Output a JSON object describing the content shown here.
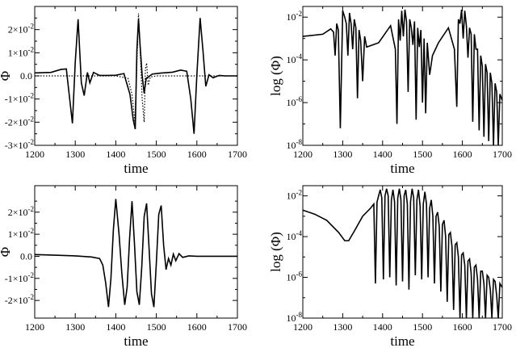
{
  "chart_data": [
    {
      "type": "line",
      "panel": "top-left",
      "xlabel": "time",
      "ylabel": "Φ",
      "xlim": [
        1200,
        1700
      ],
      "ylim": [
        -0.03,
        0.03
      ],
      "xticks": [
        1200,
        1300,
        1400,
        1500,
        1600,
        1700
      ],
      "xtick_labels": [
        "1200",
        "1300",
        "1400",
        "1500",
        "1600",
        "1700"
      ],
      "yticks": [
        -0.03,
        -0.02,
        -0.01,
        0,
        0.01,
        0.02
      ],
      "ytick_labels": [
        {
          "mant": "-3×10",
          "exp": "-2"
        },
        {
          "mant": "-2×10",
          "exp": "-2"
        },
        {
          "mant": "-1×10",
          "exp": "-2"
        },
        {
          "mant": "0.0",
          "exp": ""
        },
        {
          "mant": "1×10",
          "exp": "-2"
        },
        {
          "mant": "2×10",
          "exp": "-2"
        }
      ],
      "series": [
        {
          "style": "solid",
          "x": [
            1200,
            1240,
            1265,
            1278,
            1285,
            1293,
            1300,
            1307,
            1315,
            1322,
            1330,
            1336,
            1345,
            1360,
            1380,
            1400,
            1420,
            1435,
            1443,
            1448,
            1452,
            1456,
            1460,
            1465,
            1470,
            1475,
            1480,
            1490,
            1510,
            1540,
            1560,
            1575,
            1585,
            1593,
            1600,
            1608,
            1615,
            1622,
            1630,
            1640,
            1655,
            1670,
            1700
          ],
          "y": [
            0.0013,
            0.0015,
            0.0028,
            0.003,
            -0.008,
            -0.0205,
            0.006,
            0.0245,
            -0.003,
            -0.0085,
            0.0015,
            -0.003,
            0.0015,
            0.0002,
            0.0002,
            0.0003,
            0.001,
            -0.008,
            -0.019,
            -0.023,
            0.011,
            0.0245,
            0.013,
            0.0002,
            -0.0075,
            -0.001,
            -0.0005,
            0.0008,
            0.0012,
            0.0016,
            0.0025,
            0.002,
            -0.01,
            -0.025,
            0.0005,
            0.025,
            0.011,
            -0.0045,
            0.0005,
            -0.0008,
            0.0002,
            0.0,
            0.0
          ]
        },
        {
          "style": "dotted",
          "x": [
            1200,
            1400,
            1430,
            1440,
            1447,
            1452,
            1456,
            1460,
            1465,
            1470,
            1473,
            1476,
            1480,
            1485,
            1500,
            1700
          ],
          "y": [
            0.0,
            0.0,
            -0.001,
            -0.008,
            -0.02,
            0.005,
            0.027,
            0.012,
            -0.01,
            -0.02,
            0.003,
            0.0055,
            -0.004,
            -0.0005,
            0.0,
            0.0
          ]
        }
      ]
    },
    {
      "type": "line",
      "panel": "top-right",
      "xlabel": "time",
      "ylabel": "log  (Φ)",
      "xlim": [
        1200,
        1700
      ],
      "ylim": [
        -8,
        -1.5
      ],
      "yscale": "log",
      "xticks": [
        1200,
        1300,
        1400,
        1500,
        1600,
        1700
      ],
      "xtick_labels": [
        "1200",
        "1300",
        "1400",
        "1500",
        "1600",
        "1700"
      ],
      "yticks": [
        -8,
        -6,
        -4,
        -2
      ],
      "ytick_labels": [
        {
          "mant": "10",
          "exp": "-8"
        },
        {
          "mant": "10",
          "exp": "-6"
        },
        {
          "mant": "10",
          "exp": "-4"
        },
        {
          "mant": "10",
          "exp": "-2"
        }
      ],
      "series": [
        {
          "style": "solid",
          "log10_x": [
            1200,
            1250,
            1270,
            1277,
            1281,
            1285,
            1289,
            1294,
            1300,
            1305,
            1309,
            1313,
            1317,
            1321,
            1325,
            1329,
            1333,
            1337,
            1341,
            1345,
            1350,
            1355,
            1360,
            1390,
            1420,
            1432,
            1436,
            1440,
            1444,
            1448,
            1452,
            1456,
            1460,
            1464,
            1468,
            1472,
            1476,
            1480,
            1484,
            1488,
            1492,
            1496,
            1500,
            1504,
            1508,
            1512,
            1518,
            1525,
            1540,
            1565,
            1580,
            1586,
            1590,
            1594,
            1598,
            1602,
            1606,
            1610,
            1614,
            1618,
            1622,
            1626,
            1630,
            1634,
            1638,
            1642,
            1646,
            1650,
            1654,
            1658,
            1662,
            1666,
            1670,
            1674,
            1678,
            1682,
            1686,
            1690,
            1694,
            1700
          ],
          "log10_y": [
            -2.9,
            -2.8,
            -2.55,
            -2.7,
            -3.8,
            -2.3,
            -2.6,
            -7.2,
            -1.7,
            -2.0,
            -2.3,
            -3.8,
            -1.8,
            -2.3,
            -3.5,
            -2.1,
            -2.5,
            -5.8,
            -2.6,
            -3.1,
            -5.0,
            -2.9,
            -3.4,
            -3.2,
            -2.4,
            -3.5,
            -7.0,
            -2.1,
            -3.1,
            -1.7,
            -2.9,
            -1.65,
            -2.2,
            -5.5,
            -2.1,
            -2.5,
            -3.3,
            -2.2,
            -6.8,
            -2.5,
            -3.4,
            -2.6,
            -6.0,
            -3.0,
            -6.5,
            -3.2,
            -4.7,
            -3.8,
            -3.2,
            -2.5,
            -3.5,
            -6.2,
            -2.1,
            -2.3,
            -1.65,
            -3.0,
            -1.7,
            -2.4,
            -3.9,
            -2.5,
            -2.8,
            -6.9,
            -2.8,
            -3.5,
            -3.5,
            -7.3,
            -3.8,
            -4.3,
            -7.6,
            -4.2,
            -4.6,
            -7.8,
            -4.6,
            -5.1,
            -8.0,
            -5.1,
            -5.5,
            -8.0,
            -5.6,
            -5.9
          ]
        }
      ]
    },
    {
      "type": "line",
      "panel": "bottom-left",
      "xlabel": "time",
      "ylabel": "Φ",
      "xlim": [
        1200,
        1700
      ],
      "ylim": [
        -0.028,
        0.032
      ],
      "xticks": [
        1200,
        1300,
        1400,
        1500,
        1600,
        1700
      ],
      "xtick_labels": [
        "1200",
        "1300",
        "1400",
        "1500",
        "1600",
        "1700"
      ],
      "yticks": [
        -0.02,
        -0.01,
        0,
        0.01,
        0.02
      ],
      "ytick_labels": [
        {
          "mant": "-2×10",
          "exp": "-2"
        },
        {
          "mant": "-1×10",
          "exp": "-2"
        },
        {
          "mant": "0.0",
          "exp": ""
        },
        {
          "mant": "1×10",
          "exp": "-2"
        },
        {
          "mant": "2×10",
          "exp": "-2"
        }
      ],
      "series": [
        {
          "style": "solid",
          "x": [
            1200,
            1250,
            1300,
            1340,
            1360,
            1368,
            1375,
            1382,
            1388,
            1394,
            1400,
            1408,
            1415,
            1422,
            1428,
            1434,
            1440,
            1446,
            1452,
            1458,
            1464,
            1470,
            1476,
            1482,
            1488,
            1494,
            1500,
            1506,
            1512,
            1518,
            1524,
            1530,
            1536,
            1542,
            1548,
            1556,
            1565,
            1580,
            1600,
            1700
          ],
          "y": [
            0.0008,
            0.0005,
            0.0002,
            -0.0003,
            -0.001,
            -0.004,
            -0.012,
            -0.023,
            -0.01,
            0.012,
            0.026,
            0.01,
            -0.008,
            -0.022,
            -0.014,
            0.008,
            0.025,
            0.006,
            -0.016,
            -0.022,
            -0.005,
            0.018,
            0.024,
            0.004,
            -0.017,
            -0.023,
            -0.003,
            0.019,
            0.023,
            0.005,
            -0.006,
            -0.001,
            -0.004,
            0.001,
            -0.002,
            0.0012,
            -0.0005,
            0.0002,
            0.0,
            0.0
          ]
        }
      ]
    },
    {
      "type": "line",
      "panel": "bottom-right",
      "xlabel": "time",
      "ylabel": "log  (Φ)",
      "xlim": [
        1200,
        1700
      ],
      "ylim": [
        -8,
        -1.5
      ],
      "yscale": "log",
      "xticks": [
        1200,
        1300,
        1400,
        1500,
        1600,
        1700
      ],
      "xtick_labels": [
        "1200",
        "1300",
        "1400",
        "1500",
        "1600",
        "1700"
      ],
      "yticks": [
        -8,
        -6,
        -4,
        -2
      ],
      "ytick_labels": [
        {
          "mant": "10",
          "exp": "-8"
        },
        {
          "mant": "10",
          "exp": "-6"
        },
        {
          "mant": "10",
          "exp": "-4"
        },
        {
          "mant": "10",
          "exp": "-2"
        }
      ],
      "series": [
        {
          "style": "solid",
          "log10_x": [
            1200,
            1230,
            1260,
            1290,
            1305,
            1315,
            1330,
            1350,
            1370,
            1378,
            1382,
            1386,
            1390,
            1394,
            1398,
            1402,
            1406,
            1410,
            1414,
            1418,
            1422,
            1426,
            1430,
            1434,
            1438,
            1442,
            1446,
            1450,
            1454,
            1458,
            1462,
            1466,
            1470,
            1474,
            1478,
            1482,
            1486,
            1490,
            1494,
            1498,
            1502,
            1506,
            1510,
            1514,
            1518,
            1522,
            1526,
            1530,
            1534,
            1538,
            1542,
            1546,
            1550,
            1554,
            1558,
            1562,
            1566,
            1570,
            1574,
            1578,
            1582,
            1586,
            1590,
            1594,
            1598,
            1602,
            1606,
            1610,
            1614,
            1618,
            1622,
            1626,
            1630,
            1634,
            1638,
            1642,
            1646,
            1650,
            1654,
            1658,
            1662,
            1666,
            1670,
            1674,
            1678,
            1682,
            1686,
            1690,
            1694,
            1700
          ],
          "log10_y": [
            -2.7,
            -2.9,
            -3.2,
            -3.8,
            -4.2,
            -4.2,
            -3.7,
            -3.0,
            -2.6,
            -2.4,
            -6.3,
            -2.3,
            -2.0,
            -1.7,
            -2.1,
            -6.1,
            -2.0,
            -1.65,
            -2.0,
            -6.0,
            -2.2,
            -1.7,
            -2.3,
            -6.4,
            -2.1,
            -1.65,
            -2.2,
            -6.2,
            -2.0,
            -1.7,
            -2.4,
            -6.6,
            -2.3,
            -1.65,
            -2.1,
            -5.9,
            -2.2,
            -1.7,
            -2.5,
            -6.1,
            -2.4,
            -1.8,
            -2.4,
            -6.0,
            -2.6,
            -2.2,
            -3.0,
            -6.3,
            -3.0,
            -2.8,
            -3.5,
            -6.7,
            -3.4,
            -3.2,
            -4.0,
            -7.2,
            -3.9,
            -3.8,
            -4.5,
            -7.6,
            -4.4,
            -4.3,
            -5.0,
            -8.0,
            -4.9,
            -4.8,
            -5.4,
            -8.0,
            -5.2,
            -5.1,
            -5.8,
            -8.0,
            -5.5,
            -5.4,
            -6.1,
            -8.0,
            -5.7,
            -5.7,
            -6.3,
            -8.0,
            -5.9,
            -6.0,
            -6.6,
            -8.0,
            -6.1,
            -6.2,
            -6.9,
            -8.0,
            -6.3,
            -6.5
          ]
        }
      ]
    }
  ]
}
